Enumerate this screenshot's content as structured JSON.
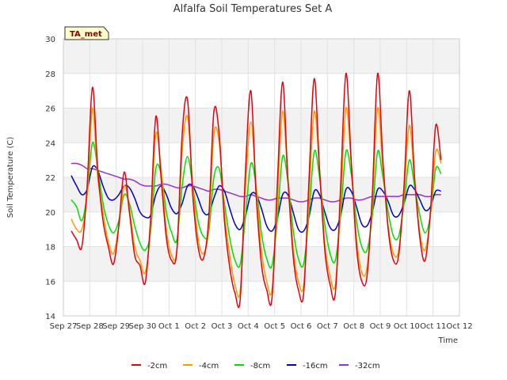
{
  "chart_data": {
    "type": "line",
    "title": "Alfalfa Soil Temperatures Set A",
    "xlabel": "Time",
    "ylabel": "Soil Temperature (C)",
    "site_label": "TA_met",
    "ylim": [
      14,
      30
    ],
    "yticks": [
      14,
      16,
      18,
      20,
      22,
      24,
      26,
      28,
      30
    ],
    "xlim_days": [
      0,
      15
    ],
    "xticks": [
      "Sep 27",
      "Sep 28",
      "Sep 29",
      "Sep 30",
      "Oct 1",
      "Oct 2",
      "Oct 3",
      "Oct 4",
      "Oct 5",
      "Oct 6",
      "Oct 7",
      "Oct 8",
      "Oct 9",
      "Oct 10",
      "Oct 11",
      "Oct 12"
    ],
    "grid": true,
    "legend_position": "bottom",
    "x_days": [
      0.3,
      0.5,
      0.7,
      0.9,
      1.1,
      1.3,
      1.5,
      1.7,
      1.9,
      2.1,
      2.3,
      2.5,
      2.7,
      2.9,
      3.1,
      3.3,
      3.5,
      3.7,
      3.9,
      4.1,
      4.3,
      4.5,
      4.7,
      4.9,
      5.1,
      5.3,
      5.5,
      5.7,
      5.9,
      6.1,
      6.3,
      6.5,
      6.7,
      6.9,
      7.1,
      7.3,
      7.5,
      7.7,
      7.9,
      8.1,
      8.3,
      8.5,
      8.7,
      8.9,
      9.1,
      9.3,
      9.5,
      9.7,
      9.9,
      10.1,
      10.3,
      10.5,
      10.7,
      10.9,
      11.1,
      11.3,
      11.5,
      11.7,
      11.9,
      12.1,
      12.3,
      12.5,
      12.7,
      12.9,
      13.1,
      13.3,
      13.5,
      13.7,
      13.9,
      14.1,
      14.3
    ],
    "series": [
      {
        "name": "-2cm",
        "color": "#e8000b",
        "values": [
          18.9,
          18.4,
          18.0,
          21.5,
          27.2,
          22.5,
          19.5,
          18.0,
          17.0,
          19.2,
          22.3,
          20.0,
          17.5,
          16.9,
          15.9,
          19.5,
          25.5,
          22.0,
          18.5,
          17.2,
          17.8,
          24.5,
          26.5,
          21.0,
          18.0,
          17.3,
          19.5,
          25.8,
          24.5,
          19.5,
          16.8,
          15.3,
          15.0,
          22.5,
          27.0,
          21.0,
          17.0,
          15.5,
          15.0,
          21.5,
          27.5,
          22.0,
          17.5,
          15.5,
          15.3,
          21.8,
          27.7,
          22.5,
          17.8,
          15.8,
          15.3,
          21.5,
          28.0,
          23.0,
          18.0,
          16.0,
          16.3,
          21.0,
          28.0,
          23.0,
          19.0,
          17.2,
          17.5,
          21.5,
          27.0,
          22.0,
          18.5,
          17.2,
          20.0,
          25.0,
          23.0
        ]
      },
      {
        "name": "-4cm",
        "color": "#ff9900",
        "values": [
          19.6,
          19.0,
          19.0,
          21.0,
          26.0,
          22.0,
          20.0,
          18.3,
          17.6,
          19.2,
          21.5,
          20.2,
          18.0,
          17.2,
          16.5,
          19.0,
          24.5,
          22.5,
          19.0,
          17.5,
          17.8,
          23.5,
          25.5,
          21.5,
          18.5,
          17.6,
          19.0,
          24.5,
          24.0,
          20.0,
          17.5,
          15.8,
          15.5,
          21.5,
          25.2,
          21.5,
          17.8,
          16.0,
          15.5,
          20.5,
          25.8,
          22.0,
          18.0,
          16.0,
          15.8,
          20.8,
          25.8,
          22.5,
          18.2,
          16.3,
          15.8,
          20.5,
          26.0,
          22.8,
          18.5,
          16.5,
          16.8,
          20.5,
          26.0,
          22.5,
          19.2,
          17.6,
          17.8,
          21.0,
          25.0,
          21.8,
          18.8,
          17.8,
          19.8,
          23.5,
          22.8
        ]
      },
      {
        "name": "-8cm",
        "color": "#00e000",
        "values": [
          20.7,
          20.3,
          19.5,
          21.0,
          24.0,
          22.5,
          20.5,
          19.3,
          18.8,
          19.5,
          21.0,
          20.5,
          19.2,
          18.2,
          17.8,
          18.8,
          22.5,
          22.2,
          20.0,
          18.8,
          18.4,
          21.5,
          23.2,
          21.5,
          19.5,
          18.6,
          18.8,
          22.0,
          22.5,
          20.5,
          18.5,
          17.2,
          17.0,
          19.8,
          22.8,
          21.5,
          18.8,
          17.3,
          16.9,
          19.5,
          23.2,
          21.8,
          19.0,
          17.3,
          17.0,
          19.8,
          23.5,
          22.0,
          19.3,
          17.6,
          17.2,
          19.8,
          23.5,
          22.2,
          19.5,
          18.0,
          17.8,
          19.8,
          23.5,
          22.0,
          20.0,
          18.6,
          18.6,
          20.5,
          23.0,
          21.5,
          19.8,
          18.8,
          19.8,
          22.5,
          22.2
        ]
      },
      {
        "name": "-16cm",
        "color": "#0000cc",
        "values": [
          22.1,
          21.5,
          21.0,
          21.3,
          22.6,
          22.4,
          21.5,
          20.8,
          20.7,
          21.0,
          21.5,
          21.4,
          20.8,
          20.0,
          19.7,
          19.8,
          21.0,
          21.5,
          21.0,
          20.2,
          19.9,
          20.5,
          21.5,
          21.5,
          20.8,
          20.0,
          19.9,
          20.8,
          21.5,
          21.2,
          20.2,
          19.3,
          19.0,
          19.8,
          21.0,
          21.0,
          20.2,
          19.2,
          18.9,
          19.6,
          21.0,
          21.0,
          20.0,
          19.0,
          18.9,
          19.7,
          21.2,
          21.0,
          20.0,
          19.1,
          19.0,
          19.8,
          21.3,
          21.2,
          20.3,
          19.3,
          19.2,
          20.0,
          21.3,
          21.2,
          20.6,
          19.8,
          19.8,
          20.5,
          21.5,
          21.3,
          20.7,
          20.1,
          20.3,
          21.2,
          21.2
        ]
      },
      {
        "name": "-32cm",
        "color": "#9933cc",
        "values": [
          22.8,
          22.8,
          22.7,
          22.5,
          22.5,
          22.4,
          22.3,
          22.2,
          22.1,
          22.0,
          21.9,
          21.9,
          21.8,
          21.6,
          21.5,
          21.5,
          21.5,
          21.6,
          21.6,
          21.5,
          21.4,
          21.4,
          21.5,
          21.5,
          21.4,
          21.3,
          21.2,
          21.3,
          21.3,
          21.2,
          21.1,
          21.0,
          20.9,
          20.9,
          21.0,
          20.9,
          20.8,
          20.7,
          20.7,
          20.8,
          20.8,
          20.8,
          20.7,
          20.6,
          20.6,
          20.7,
          20.8,
          20.8,
          20.7,
          20.6,
          20.6,
          20.7,
          20.8,
          20.8,
          20.7,
          20.7,
          20.8,
          20.9,
          20.9,
          20.9,
          20.9,
          20.9,
          20.9,
          21.0,
          21.0,
          21.0,
          21.0,
          20.9,
          20.9,
          21.0,
          21.0
        ]
      }
    ]
  }
}
